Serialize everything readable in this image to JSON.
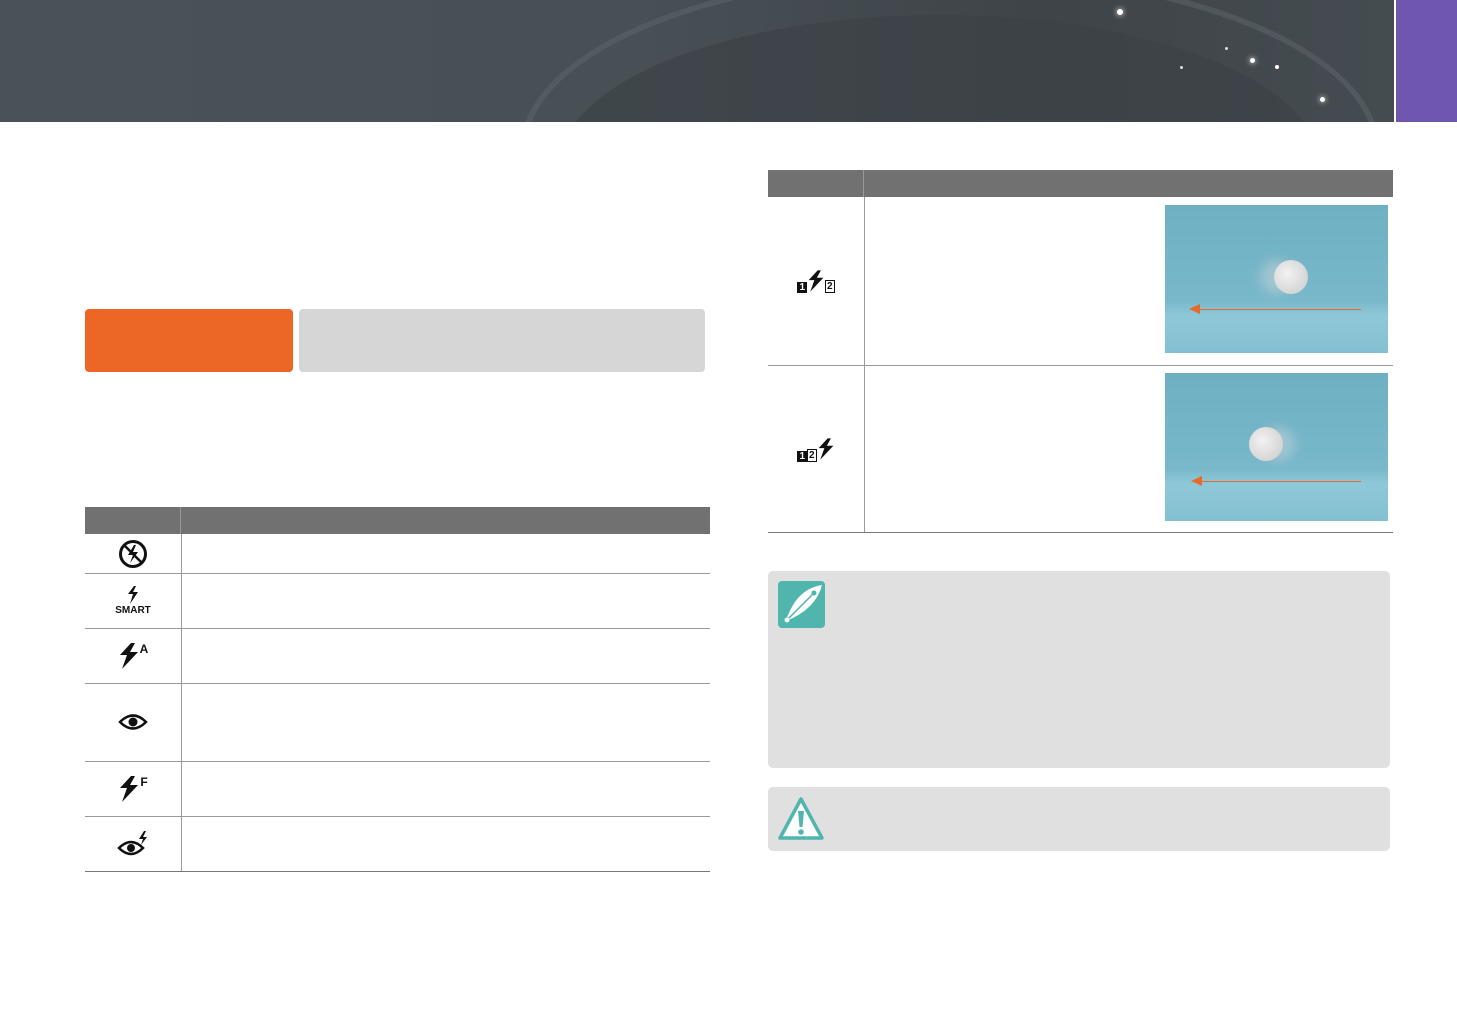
{
  "colors": {
    "accent_orange": "#ec6726",
    "tab_purple": "#6f57b0",
    "note_teal": "#4fb5ad",
    "table_header": "#717171"
  },
  "flash_modes": [
    {
      "icon": "flash-off-icon"
    },
    {
      "icon": "smart-flash-icon",
      "label": "SMART"
    },
    {
      "icon": "auto-flash-icon",
      "label": "A"
    },
    {
      "icon": "red-eye-icon"
    },
    {
      "icon": "fill-in-flash-icon",
      "label": "F"
    },
    {
      "icon": "red-eye-fix-icon"
    }
  ],
  "sync_modes": [
    {
      "icon": "first-curtain-icon",
      "labels": [
        "1",
        "2"
      ]
    },
    {
      "icon": "second-curtain-icon",
      "labels": [
        "1",
        "2"
      ]
    }
  ],
  "notes": {
    "note_icon": "pen-icon",
    "warning_icon": "warning-icon"
  }
}
